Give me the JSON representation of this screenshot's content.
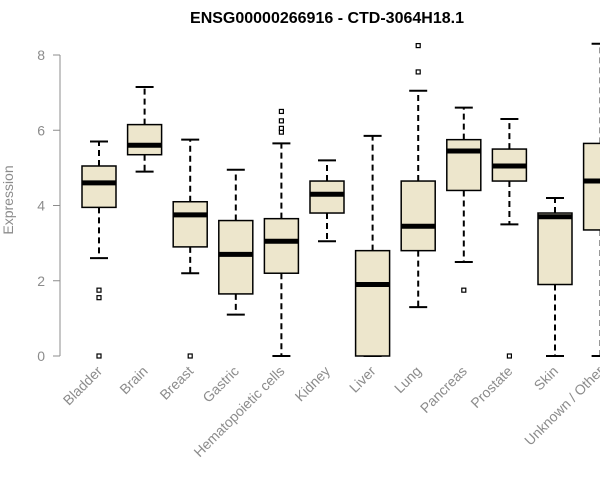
{
  "chart_data": {
    "type": "boxplot",
    "title": "ENSG00000266916 - CTD-3064H18.1",
    "xlabel": "",
    "ylabel": "Expression",
    "ylim": [
      0,
      8.3
    ],
    "yticks": [
      0,
      2,
      4,
      6,
      8
    ],
    "grid": false,
    "colors": {
      "box_fill": "#ede6cc",
      "stroke": "#000000",
      "axis": "#8c8c8c"
    },
    "categories": [
      "Bladder",
      "Brain",
      "Breast",
      "Gastric",
      "Hematopoietic cells",
      "Kidney",
      "Liver",
      "Lung",
      "Pancreas",
      "Prostate",
      "Skin",
      "Unknown / Other"
    ],
    "boxes": [
      {
        "category": "Bladder",
        "whisker_low": 2.6,
        "q1": 3.95,
        "median": 4.6,
        "q3": 5.05,
        "whisker_high": 5.7,
        "outliers": [
          0,
          1.55,
          1.75
        ]
      },
      {
        "category": "Brain",
        "whisker_low": 4.9,
        "q1": 5.35,
        "median": 5.6,
        "q3": 6.15,
        "whisker_high": 7.15,
        "outliers": []
      },
      {
        "category": "Breast",
        "whisker_low": 2.2,
        "q1": 2.9,
        "median": 3.75,
        "q3": 4.1,
        "whisker_high": 5.75,
        "outliers": [
          0
        ]
      },
      {
        "category": "Gastric",
        "whisker_low": 1.1,
        "q1": 1.65,
        "median": 2.7,
        "q3": 3.6,
        "whisker_high": 4.95,
        "outliers": []
      },
      {
        "category": "Hematopoietic cells",
        "whisker_low": 0,
        "q1": 2.2,
        "median": 3.05,
        "q3": 3.65,
        "whisker_high": 5.65,
        "outliers": [
          5.95,
          6.05,
          6.25,
          6.5
        ]
      },
      {
        "category": "Kidney",
        "whisker_low": 3.05,
        "q1": 3.8,
        "median": 4.3,
        "q3": 4.65,
        "whisker_high": 5.2,
        "outliers": []
      },
      {
        "category": "Liver",
        "whisker_low": 0,
        "q1": 0,
        "median": 1.9,
        "q3": 2.8,
        "whisker_high": 5.85,
        "outliers": []
      },
      {
        "category": "Lung",
        "whisker_low": 1.3,
        "q1": 2.8,
        "median": 3.45,
        "q3": 4.65,
        "whisker_high": 7.05,
        "outliers": [
          7.55,
          8.25
        ]
      },
      {
        "category": "Pancreas",
        "whisker_low": 2.5,
        "q1": 4.4,
        "median": 5.45,
        "q3": 5.75,
        "whisker_high": 6.6,
        "outliers": [
          1.75
        ]
      },
      {
        "category": "Prostate",
        "whisker_low": 3.5,
        "q1": 4.65,
        "median": 5.05,
        "q3": 5.5,
        "whisker_high": 6.3,
        "outliers": [
          0
        ]
      },
      {
        "category": "Skin",
        "whisker_low": 0,
        "q1": 1.9,
        "median": 3.7,
        "q3": 3.8,
        "whisker_high": 4.2,
        "outliers": []
      },
      {
        "category": "Unknown / Other",
        "whisker_low": 0,
        "q1": 3.35,
        "median": 4.65,
        "q3": 5.65,
        "whisker_high": 8.3,
        "outliers": []
      }
    ]
  }
}
